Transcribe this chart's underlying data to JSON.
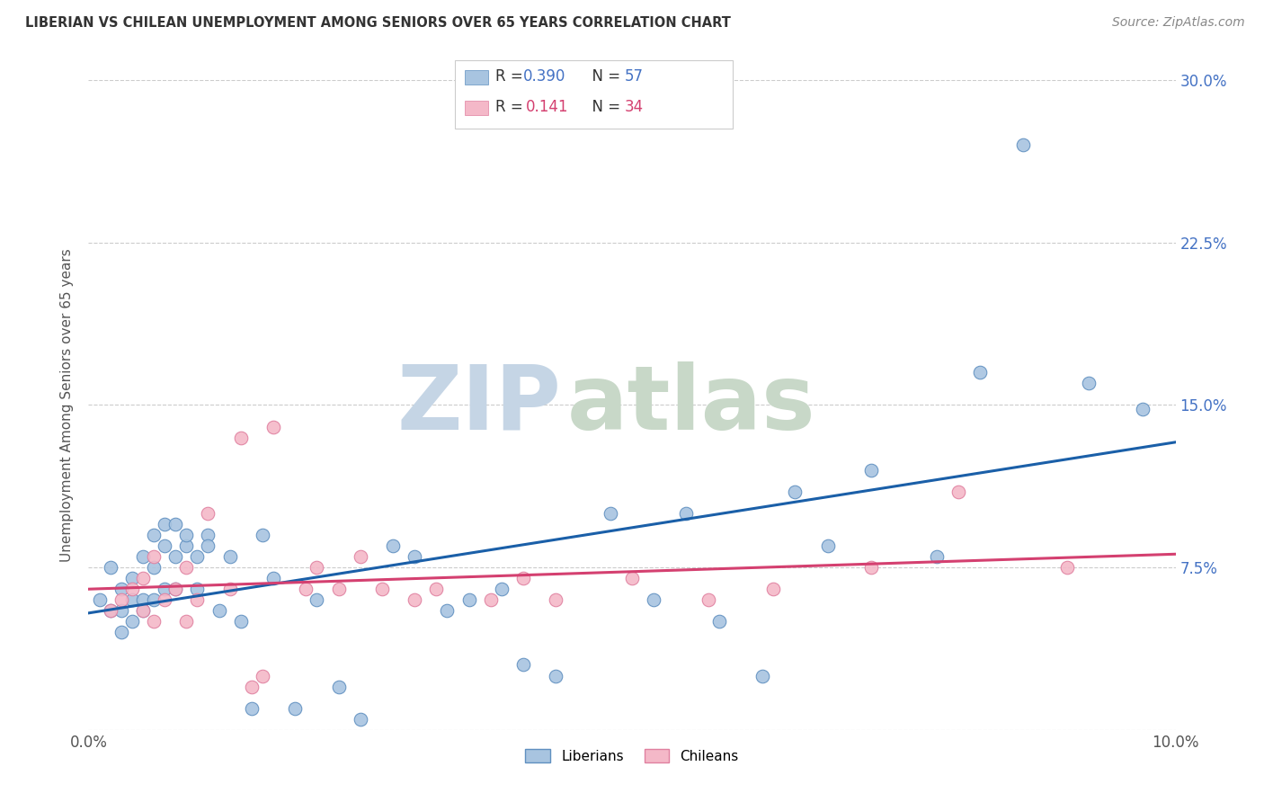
{
  "title": "LIBERIAN VS CHILEAN UNEMPLOYMENT AMONG SENIORS OVER 65 YEARS CORRELATION CHART",
  "source": "Source: ZipAtlas.com",
  "ylabel": "Unemployment Among Seniors over 65 years",
  "xlim": [
    0.0,
    0.1
  ],
  "ylim": [
    0.0,
    0.3
  ],
  "xticks": [
    0.0,
    0.1
  ],
  "xtick_labels": [
    "0.0%",
    "10.0%"
  ],
  "yticks": [
    0.0,
    0.075,
    0.15,
    0.225,
    0.3
  ],
  "ytick_labels_right": [
    "",
    "7.5%",
    "15.0%",
    "22.5%",
    "30.0%"
  ],
  "liberians_x": [
    0.001,
    0.002,
    0.002,
    0.003,
    0.003,
    0.003,
    0.004,
    0.004,
    0.004,
    0.005,
    0.005,
    0.005,
    0.006,
    0.006,
    0.006,
    0.007,
    0.007,
    0.007,
    0.008,
    0.008,
    0.008,
    0.009,
    0.009,
    0.01,
    0.01,
    0.011,
    0.011,
    0.012,
    0.013,
    0.014,
    0.015,
    0.016,
    0.017,
    0.019,
    0.021,
    0.023,
    0.025,
    0.028,
    0.03,
    0.033,
    0.035,
    0.038,
    0.04,
    0.043,
    0.048,
    0.052,
    0.055,
    0.058,
    0.062,
    0.065,
    0.068,
    0.072,
    0.078,
    0.082,
    0.086,
    0.092,
    0.097
  ],
  "liberians_y": [
    0.06,
    0.075,
    0.055,
    0.065,
    0.055,
    0.045,
    0.06,
    0.07,
    0.05,
    0.06,
    0.08,
    0.055,
    0.09,
    0.075,
    0.06,
    0.095,
    0.085,
    0.065,
    0.095,
    0.08,
    0.065,
    0.085,
    0.09,
    0.065,
    0.08,
    0.09,
    0.085,
    0.055,
    0.08,
    0.05,
    0.01,
    0.09,
    0.07,
    0.01,
    0.06,
    0.02,
    0.005,
    0.085,
    0.08,
    0.055,
    0.06,
    0.065,
    0.03,
    0.025,
    0.1,
    0.06,
    0.1,
    0.05,
    0.025,
    0.11,
    0.085,
    0.12,
    0.08,
    0.165,
    0.27,
    0.16,
    0.148
  ],
  "chileans_x": [
    0.002,
    0.003,
    0.004,
    0.005,
    0.005,
    0.006,
    0.006,
    0.007,
    0.008,
    0.009,
    0.009,
    0.01,
    0.011,
    0.013,
    0.014,
    0.015,
    0.016,
    0.017,
    0.02,
    0.021,
    0.023,
    0.025,
    0.027,
    0.03,
    0.032,
    0.037,
    0.04,
    0.043,
    0.05,
    0.057,
    0.063,
    0.072,
    0.08,
    0.09
  ],
  "chileans_y": [
    0.055,
    0.06,
    0.065,
    0.055,
    0.07,
    0.05,
    0.08,
    0.06,
    0.065,
    0.05,
    0.075,
    0.06,
    0.1,
    0.065,
    0.135,
    0.02,
    0.025,
    0.14,
    0.065,
    0.075,
    0.065,
    0.08,
    0.065,
    0.06,
    0.065,
    0.06,
    0.07,
    0.06,
    0.07,
    0.06,
    0.065,
    0.075,
    0.11,
    0.075
  ],
  "liberian_line_color": "#1a5fa8",
  "chilean_line_color": "#d44070",
  "liberian_dot_color": "#a8c4e0",
  "chilean_dot_color": "#f4b8c8",
  "liberian_dot_edge": "#6090c0",
  "chilean_dot_edge": "#e080a0",
  "watermark_zip": "ZIP",
  "watermark_atlas": "atlas",
  "watermark_zip_color": "#c5d5e5",
  "watermark_atlas_color": "#c8d8c8",
  "grid_color": "#cccccc",
  "background_color": "#ffffff",
  "legend_box_color": "#ffffff",
  "legend_border_color": "#cccccc",
  "legend_r1_label": "R = 0.390",
  "legend_r1_n": "N = 57",
  "legend_r2_label": "R =  0.141",
  "legend_r2_n": "N = 34",
  "legend_blue_color": "#4472c4",
  "legend_pink_color": "#d44070"
}
